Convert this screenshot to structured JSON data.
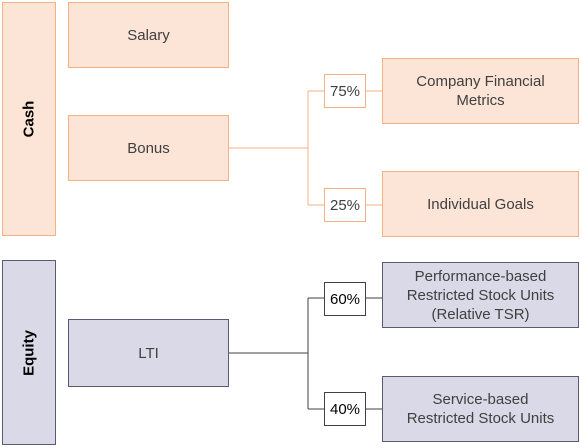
{
  "categories": {
    "cash": "Cash",
    "equity": "Equity"
  },
  "components": {
    "salary": "Salary",
    "bonus": "Bonus",
    "lti": "LTI"
  },
  "bonus_split": [
    {
      "percent": "75%",
      "label": "Company Financial Metrics"
    },
    {
      "percent": "25%",
      "label": "Individual Goals"
    }
  ],
  "lti_split": [
    {
      "percent": "60%",
      "label": "Performance-based Restricted Stock Units (Relative TSR)"
    },
    {
      "percent": "40%",
      "label": "Service-based Restricted Stock Units"
    }
  ],
  "colors": {
    "cash_fill": "#fce4d6",
    "cash_border": "#f4b183",
    "equity_fill": "#d9d9e8",
    "equity_border": "#5a5a74"
  }
}
